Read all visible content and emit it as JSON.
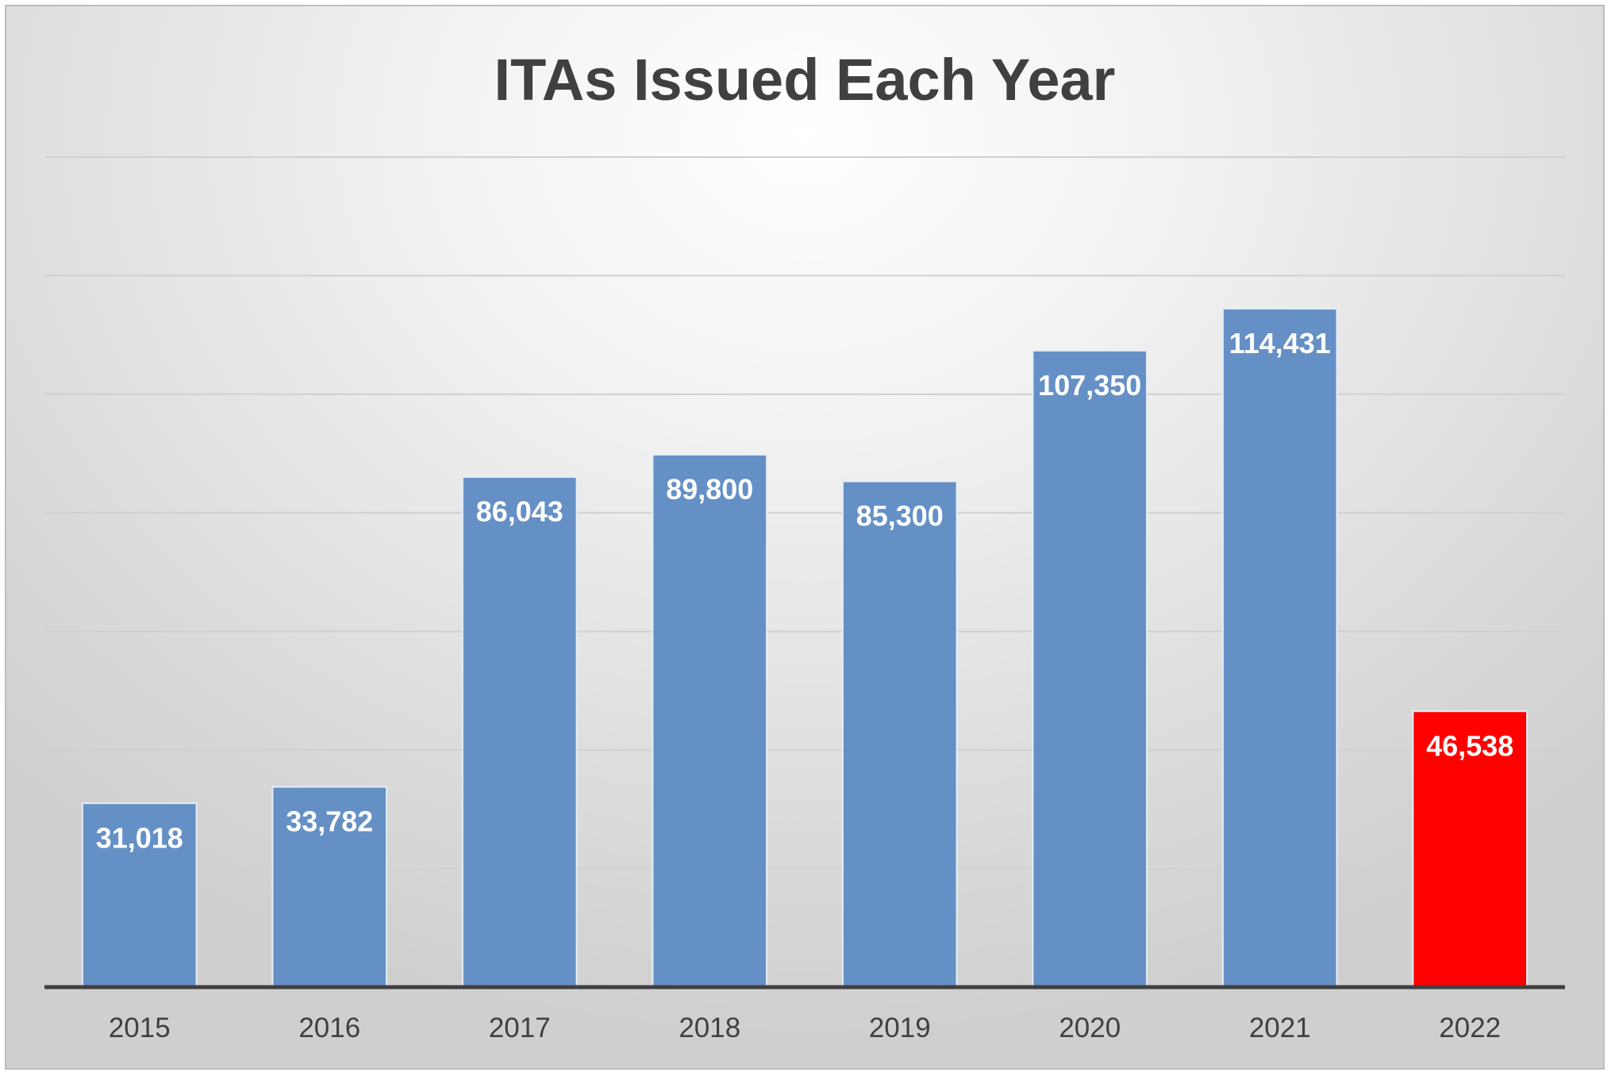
{
  "chart_data": {
    "type": "bar",
    "title": "ITAs Issued Each Year",
    "xlabel": "",
    "ylabel": "",
    "categories": [
      "2015",
      "2016",
      "2017",
      "2018",
      "2019",
      "2020",
      "2021",
      "2022"
    ],
    "values": [
      31018,
      33782,
      86043,
      89800,
      85300,
      107350,
      114431,
      46538
    ],
    "data_labels": [
      "31,018",
      "33,782",
      "86,043",
      "89,800",
      "85,300",
      "107,350",
      "114,431",
      "46,538"
    ],
    "ylim": [
      0,
      140000
    ],
    "y_gridline_step": 20000,
    "grid": true,
    "legend": "none",
    "colors": {
      "bar": "#6590c5",
      "highlight_bar": "#ff0000",
      "highlight_category": "2022",
      "title": "#404040",
      "data_label": "#ffffff",
      "axis": "#404040",
      "gridline": "#d0d0d0"
    }
  }
}
